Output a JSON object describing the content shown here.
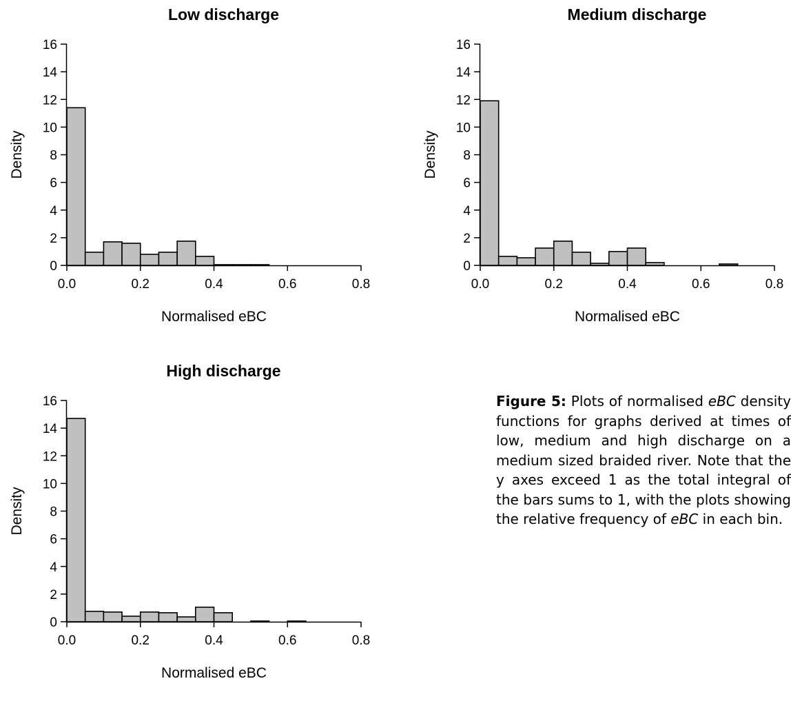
{
  "chart_data": [
    {
      "type": "bar",
      "title": "Low discharge",
      "xlabel": "Normalised eBC",
      "ylabel": "Density",
      "xlim": [
        0,
        0.8
      ],
      "ylim": [
        0,
        16
      ],
      "x_ticks": [
        "0.0",
        "0.2",
        "0.4",
        "0.6",
        "0.8"
      ],
      "y_ticks": [
        "0",
        "2",
        "4",
        "6",
        "8",
        "10",
        "12",
        "14",
        "16"
      ],
      "bin_width": 0.05,
      "bins": [
        0.0,
        0.05,
        0.1,
        0.15,
        0.2,
        0.25,
        0.3,
        0.35,
        0.4,
        0.45,
        0.5
      ],
      "values": [
        11.4,
        0.95,
        1.7,
        1.6,
        0.8,
        0.95,
        1.75,
        0.65,
        0.05,
        0.05,
        0.05
      ],
      "bar_color": "#c0c0c0"
    },
    {
      "type": "bar",
      "title": "Medium discharge",
      "xlabel": "Normalised eBC",
      "ylabel": "Density",
      "xlim": [
        0,
        0.8
      ],
      "ylim": [
        0,
        16
      ],
      "x_ticks": [
        "0.0",
        "0.2",
        "0.4",
        "0.6",
        "0.8"
      ],
      "y_ticks": [
        "0",
        "2",
        "4",
        "6",
        "8",
        "10",
        "12",
        "14",
        "16"
      ],
      "bin_width": 0.05,
      "bins": [
        0.0,
        0.05,
        0.1,
        0.15,
        0.2,
        0.25,
        0.3,
        0.35,
        0.4,
        0.45,
        0.65
      ],
      "values": [
        11.9,
        0.65,
        0.55,
        1.25,
        1.75,
        0.95,
        0.15,
        1.0,
        1.25,
        0.2,
        0.1
      ],
      "bar_color": "#c0c0c0"
    },
    {
      "type": "bar",
      "title": "High discharge",
      "xlabel": "Normalised eBC",
      "ylabel": "Density",
      "xlim": [
        0,
        0.8
      ],
      "ylim": [
        0,
        16
      ],
      "x_ticks": [
        "0.0",
        "0.2",
        "0.4",
        "0.6",
        "0.8"
      ],
      "y_ticks": [
        "0",
        "2",
        "4",
        "6",
        "8",
        "10",
        "12",
        "14",
        "16"
      ],
      "bin_width": 0.05,
      "bins": [
        0.0,
        0.05,
        0.1,
        0.15,
        0.2,
        0.25,
        0.3,
        0.35,
        0.4,
        0.5,
        0.6
      ],
      "values": [
        14.7,
        0.75,
        0.7,
        0.4,
        0.7,
        0.65,
        0.35,
        1.05,
        0.65,
        0.05,
        0.05
      ],
      "bar_color": "#c0c0c0"
    }
  ],
  "caption": {
    "label": "Figure 5:",
    "text_1": " Plots of normalised ",
    "italic_1": "eBC",
    "text_2": " density functions for graphs derived at times of low, medium and high discharge on a medium sized braided river. Note that the y axes exceed 1 as the total integral of the bars sums to 1, with the plots showing the relative frequency of ",
    "italic_2": "eBC",
    "text_3": " in each bin."
  }
}
